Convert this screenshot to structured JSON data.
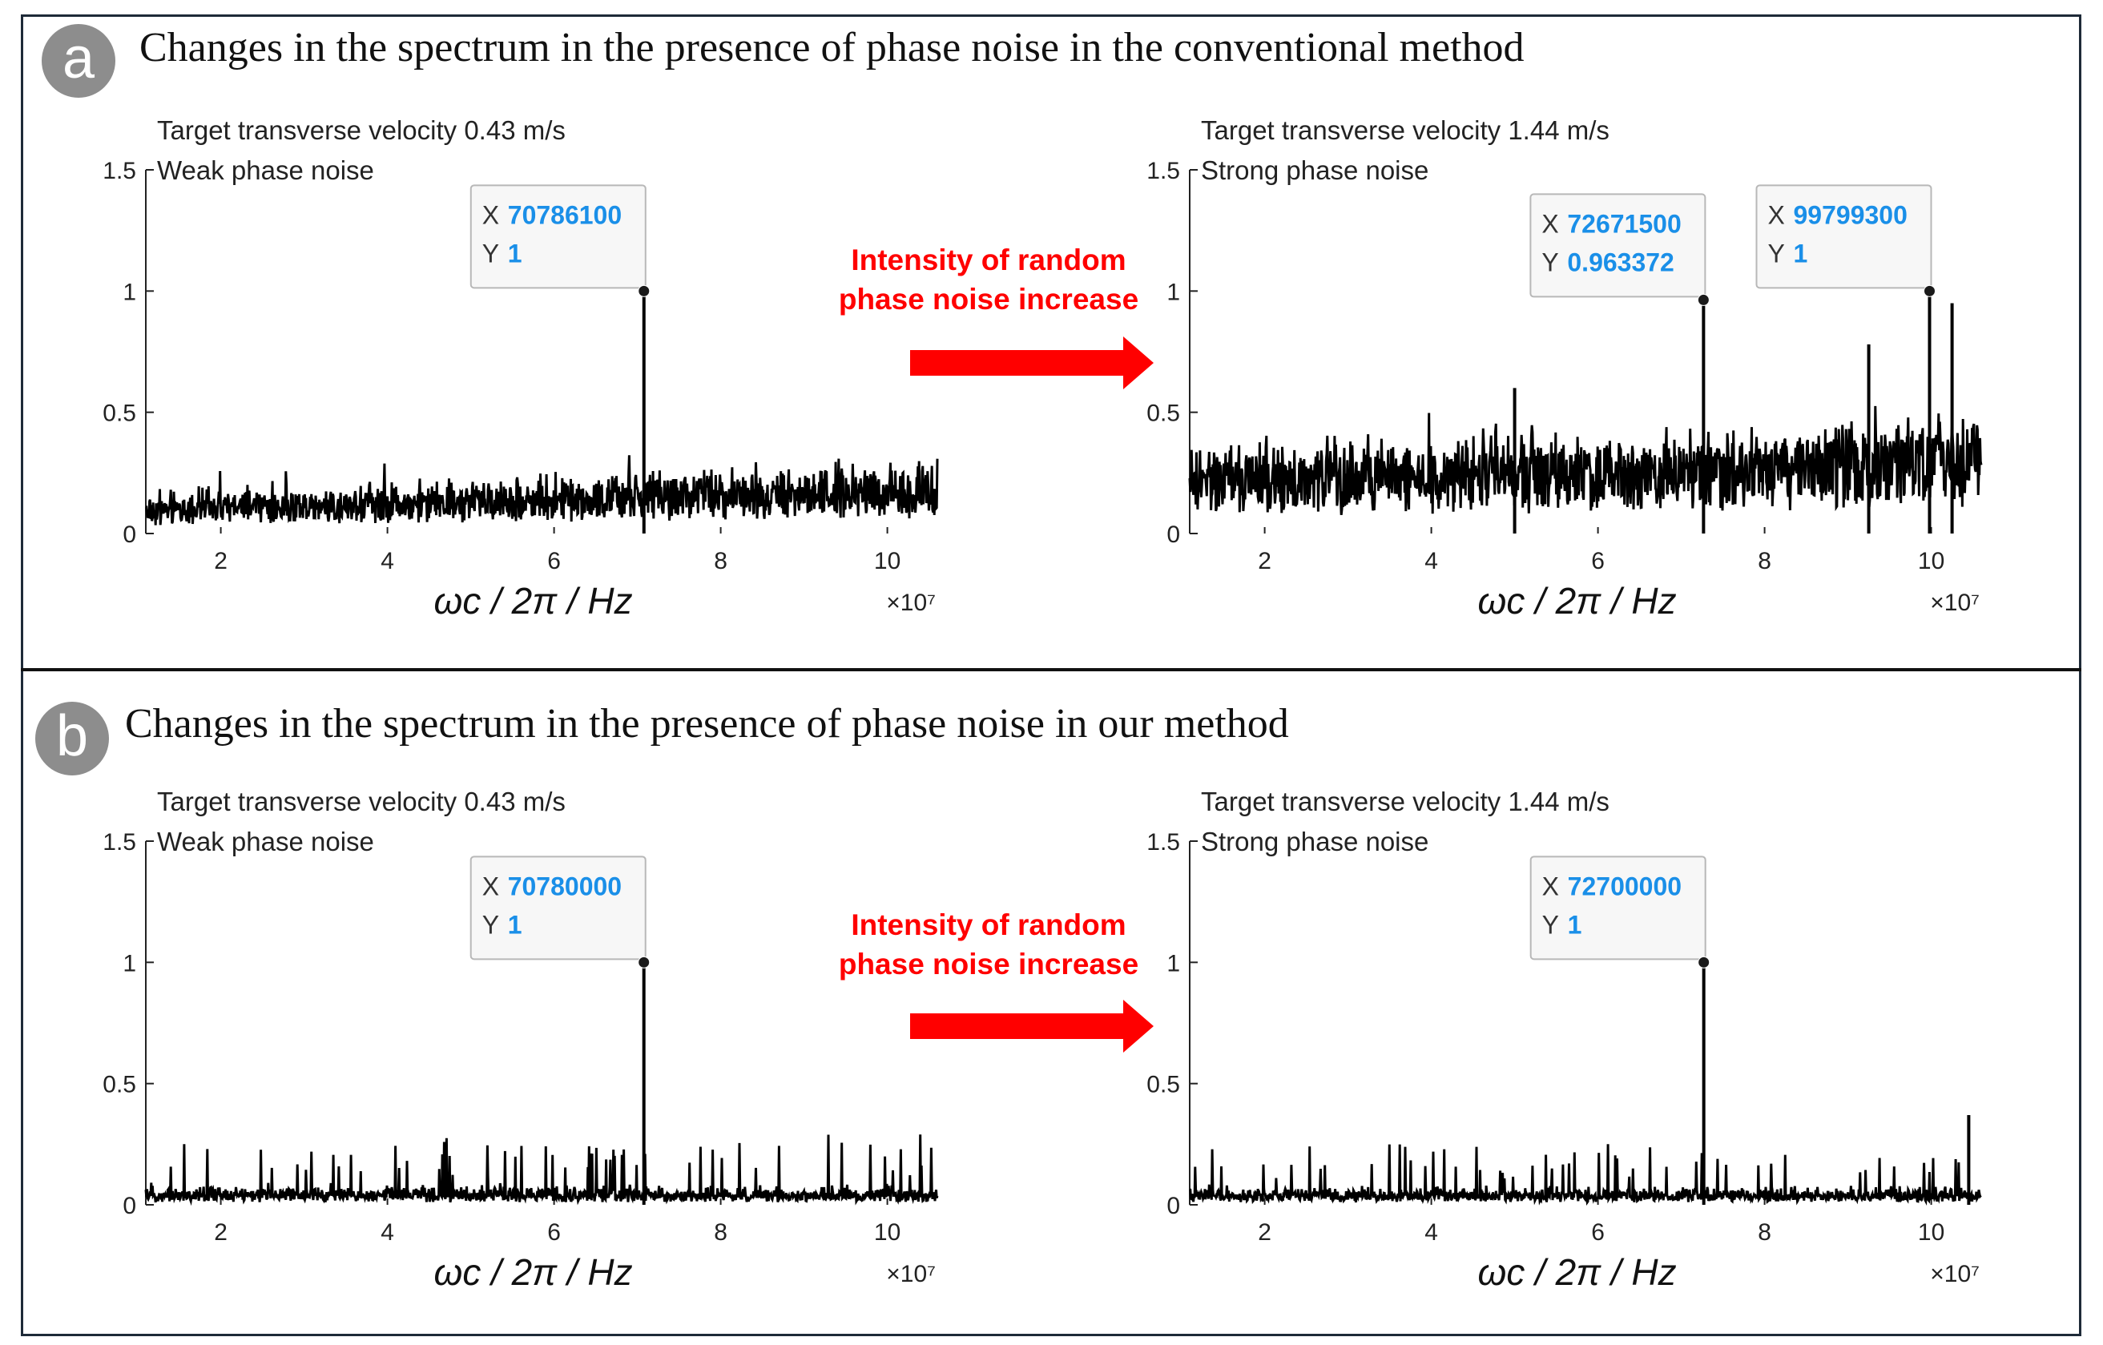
{
  "panels": [
    {
      "label": "a",
      "title": "Changes in the spectrum in the presence of phase noise in the conventional method",
      "arrow_text_line1": "Intensity of random",
      "arrow_text_line2": "phase noise increase"
    },
    {
      "label": "b",
      "title": "Changes in the spectrum in the presence of phase noise in our method",
      "arrow_text_line1": "Intensity of random",
      "arrow_text_line2": "phase noise increase"
    }
  ],
  "colors": {
    "line": "#000000",
    "datatip_value": "#1a8fe8",
    "arrow": "#ff0000",
    "badge": "#8d8d8d"
  },
  "chart_data": [
    {
      "type": "line",
      "panel": "a",
      "caption": "Target transverse velocity 0.43 m/s",
      "title": "Weak phase noise",
      "xlabel": "ωc / 2π / Hz",
      "x_exponent": "×10⁷",
      "xlim": [
        1.1,
        10.6
      ],
      "ylim": [
        0,
        1.5
      ],
      "xticks": [
        2,
        4,
        6,
        8,
        10
      ],
      "xtick_labels": [
        "2",
        "4",
        "6",
        "8",
        "10"
      ],
      "yticks": [
        0,
        0.5,
        1,
        1.5
      ],
      "ytick_labels": [
        "0",
        "0.5",
        "1",
        "1.5"
      ],
      "noise": {
        "start": 0.12,
        "end": 0.25,
        "spread": 0.09,
        "spike_prob": 0.01,
        "spike_add": 0.08
      },
      "peaks": [
        {
          "x": 7.07861,
          "y": 1
        }
      ],
      "datatips": [
        {
          "x": 7.07861,
          "y": 1,
          "x_text": "70786100",
          "y_text": "1",
          "placement": "upper-left"
        }
      ]
    },
    {
      "type": "line",
      "panel": "a",
      "caption": "Target transverse velocity 1.44 m/s",
      "title": "Strong phase noise",
      "xlabel": "ωc / 2π / Hz",
      "x_exponent": "×10⁷",
      "xlim": [
        1.1,
        10.6
      ],
      "ylim": [
        0,
        1.5
      ],
      "xticks": [
        2,
        4,
        6,
        8,
        10
      ],
      "xtick_labels": [
        "2",
        "4",
        "6",
        "8",
        "10"
      ],
      "yticks": [
        0,
        0.5,
        1,
        1.5
      ],
      "ytick_labels": [
        "0",
        "0.5",
        "1",
        "1.5"
      ],
      "noise": {
        "start": 0.28,
        "end": 0.4,
        "spread": 0.15,
        "spike_prob": 0.012,
        "spike_add": 0.14
      },
      "peaks": [
        {
          "x": 7.26715,
          "y": 0.963372
        },
        {
          "x": 9.97993,
          "y": 1
        },
        {
          "x": 10.25,
          "y": 0.95
        },
        {
          "x": 9.25,
          "y": 0.78
        },
        {
          "x": 5.0,
          "y": 0.6
        }
      ],
      "datatips": [
        {
          "x": 7.26715,
          "y": 0.963372,
          "x_text": "72671500",
          "y_text": "0.963372",
          "placement": "upper-left"
        },
        {
          "x": 9.97993,
          "y": 1,
          "x_text": "99799300",
          "y_text": "1",
          "placement": "upper-left"
        }
      ]
    },
    {
      "type": "line",
      "panel": "b",
      "caption": "Target transverse velocity 0.43 m/s",
      "title": "Weak phase noise",
      "xlabel": "ωc / 2π / Hz",
      "x_exponent": "×10⁷",
      "xlim": [
        1.1,
        10.6
      ],
      "ylim": [
        0,
        1.5
      ],
      "xticks": [
        2,
        4,
        6,
        8,
        10
      ],
      "xtick_labels": [
        "2",
        "4",
        "6",
        "8",
        "10"
      ],
      "yticks": [
        0,
        0.5,
        1,
        1.5
      ],
      "ytick_labels": [
        "0",
        "0.5",
        "1",
        "1.5"
      ],
      "noise": {
        "start": 0.04,
        "end": 0.04,
        "spread": 0.06,
        "spike_prob": 0.05,
        "spike_add": 0.16
      },
      "peaks": [
        {
          "x": 7.078,
          "y": 1
        }
      ],
      "datatips": [
        {
          "x": 7.078,
          "y": 1,
          "x_text": "70780000",
          "y_text": "1",
          "placement": "upper-left"
        }
      ]
    },
    {
      "type": "line",
      "panel": "b",
      "caption": "Target transverse velocity 1.44 m/s",
      "title": "Strong phase noise",
      "xlabel": "ωc / 2π / Hz",
      "x_exponent": "×10⁷",
      "xlim": [
        1.1,
        10.6
      ],
      "ylim": [
        0,
        1.5
      ],
      "xticks": [
        2,
        4,
        6,
        8,
        10
      ],
      "xtick_labels": [
        "2",
        "4",
        "6",
        "8",
        "10"
      ],
      "yticks": [
        0,
        0.5,
        1,
        1.5
      ],
      "ytick_labels": [
        "0",
        "0.5",
        "1",
        "1.5"
      ],
      "noise": {
        "start": 0.04,
        "end": 0.04,
        "spread": 0.05,
        "spike_prob": 0.045,
        "spike_add": 0.14
      },
      "peaks": [
        {
          "x": 7.27,
          "y": 1
        },
        {
          "x": 10.45,
          "y": 0.37
        }
      ],
      "datatips": [
        {
          "x": 7.27,
          "y": 1,
          "x_text": "72700000",
          "y_text": "1",
          "placement": "upper-left"
        }
      ]
    }
  ]
}
